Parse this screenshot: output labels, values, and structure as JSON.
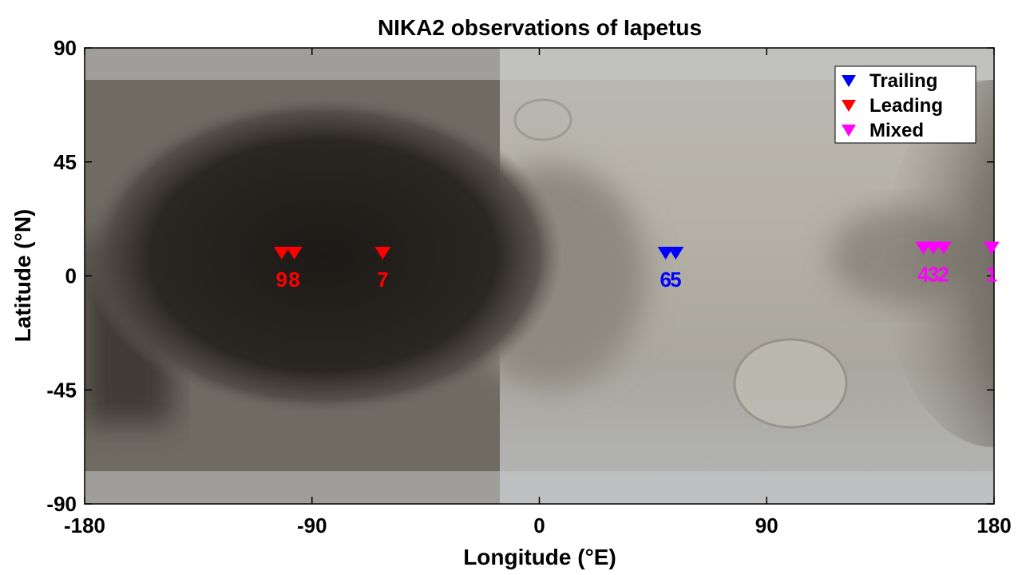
{
  "chart_data": {
    "type": "scatter",
    "title": "NIKA2 observations of Iapetus",
    "xlabel": "Longitude (°E)",
    "ylabel": "Latitude (°N)",
    "xlim": [
      -180,
      180
    ],
    "ylim": [
      -90,
      90
    ],
    "xticks": [
      -180,
      -90,
      0,
      90,
      180
    ],
    "yticks": [
      90,
      45,
      0,
      -45,
      -90
    ],
    "xtick_labels": [
      "-180",
      "-90",
      "0",
      "90",
      "180"
    ],
    "ytick_labels": [
      "90",
      "45",
      "0",
      "-45",
      "-90"
    ],
    "grid": false,
    "legend_position": "top-right",
    "background": "Iapetus surface map (dark leading hemisphere, bright trailing hemisphere)",
    "series": [
      {
        "name": "Trailing",
        "color": "#0000ff",
        "marker": "down-triangle",
        "points": [
          {
            "x": 50,
            "y": 9,
            "label": "6"
          },
          {
            "x": 54,
            "y": 9,
            "label": "5"
          }
        ]
      },
      {
        "name": "Leading",
        "color": "#ff0000",
        "marker": "down-triangle",
        "points": [
          {
            "x": -102,
            "y": 9,
            "label": "9"
          },
          {
            "x": -97,
            "y": 9,
            "label": "8"
          },
          {
            "x": -62,
            "y": 9,
            "label": "7"
          }
        ]
      },
      {
        "name": "Mixed",
        "color": "#ff00ff",
        "marker": "down-triangle",
        "points": [
          {
            "x": 152,
            "y": 11,
            "label": "4"
          },
          {
            "x": 156,
            "y": 11,
            "label": "3"
          },
          {
            "x": 160,
            "y": 11,
            "label": "2"
          },
          {
            "x": 179,
            "y": 11,
            "label": "1"
          }
        ]
      }
    ]
  }
}
